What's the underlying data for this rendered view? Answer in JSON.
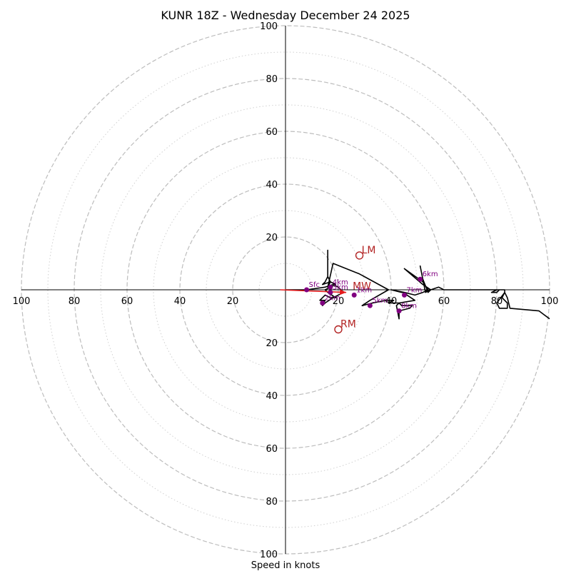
{
  "chart_data": {
    "type": "hodograph",
    "title": "KUNR 18Z - Wednesday December 24 2025",
    "xlabel": "Speed in knots",
    "ring_max": 100,
    "major_rings": [
      20,
      40,
      60,
      80,
      100
    ],
    "minor_rings": [
      10,
      30,
      50,
      70,
      90
    ],
    "ticks": [
      {
        "value": 20,
        "label": "20"
      },
      {
        "value": 40,
        "label": "40"
      },
      {
        "value": 60,
        "label": "60"
      },
      {
        "value": 80,
        "label": "80"
      },
      {
        "value": 100,
        "label": "100"
      }
    ],
    "colors": {
      "trace": "#000000",
      "mean_wind": "#e41a1c",
      "height_markers": "#800080",
      "storm_motion": "#b22222",
      "rings": "#bdbdbd"
    },
    "wind_trace": {
      "name": "wind profile (u, v knots)",
      "points": [
        [
          0,
          0
        ],
        [
          8,
          0
        ],
        [
          15,
          1
        ],
        [
          18,
          2
        ],
        [
          20,
          1
        ],
        [
          22,
          -1
        ],
        [
          18,
          -3
        ],
        [
          15,
          -5
        ],
        [
          14,
          -6
        ],
        [
          15,
          -4
        ],
        [
          13,
          -4
        ],
        [
          15,
          -2
        ],
        [
          17,
          -3
        ],
        [
          19,
          -3
        ],
        [
          16,
          -1
        ],
        [
          15,
          0
        ],
        [
          17,
          1
        ],
        [
          19,
          2
        ],
        [
          17,
          3
        ],
        [
          14,
          2
        ],
        [
          15,
          3
        ],
        [
          16,
          5
        ],
        [
          16,
          15
        ],
        [
          16,
          5
        ],
        [
          17,
          3
        ],
        [
          16,
          1
        ],
        [
          18,
          10
        ],
        [
          28,
          6
        ],
        [
          39,
          0
        ],
        [
          32,
          -4
        ],
        [
          29,
          -6
        ],
        [
          33,
          -5
        ],
        [
          38,
          -4
        ],
        [
          41,
          -4
        ],
        [
          39,
          -5
        ],
        [
          43,
          -5
        ],
        [
          42,
          -6
        ],
        [
          43,
          -11
        ],
        [
          43,
          -8
        ],
        [
          47,
          -7
        ],
        [
          48,
          -6
        ],
        [
          44,
          -6
        ],
        [
          43,
          -5
        ],
        [
          49,
          -4
        ],
        [
          46,
          -2
        ],
        [
          45,
          -1
        ],
        [
          44,
          -1
        ],
        [
          40,
          0
        ],
        [
          45,
          -1
        ],
        [
          49,
          -2
        ],
        [
          52,
          -1
        ],
        [
          54,
          0
        ],
        [
          52,
          3
        ],
        [
          45,
          8
        ],
        [
          52,
          2
        ],
        [
          55,
          0
        ],
        [
          54,
          -1
        ],
        [
          52,
          4
        ],
        [
          51,
          9
        ],
        [
          53,
          -1
        ],
        [
          55,
          0
        ],
        [
          58,
          1
        ],
        [
          60,
          0
        ],
        [
          64,
          0
        ],
        [
          70,
          0
        ],
        [
          74,
          0
        ],
        [
          76,
          0
        ],
        [
          81,
          0
        ],
        [
          80,
          -1
        ],
        [
          79,
          -1
        ],
        [
          78,
          -1
        ],
        [
          80,
          0
        ],
        [
          83,
          0
        ],
        [
          83,
          -1
        ],
        [
          80,
          -5
        ],
        [
          81,
          -7
        ],
        [
          84,
          -7
        ],
        [
          84,
          -5
        ],
        [
          82,
          -3
        ],
        [
          83,
          -1
        ],
        [
          84,
          -3
        ],
        [
          85,
          -7
        ],
        [
          96,
          -8
        ],
        [
          100,
          -11
        ]
      ]
    },
    "height_markers": [
      {
        "label": "Sfc",
        "u": 8,
        "v": 0
      },
      {
        "label": "1km",
        "u": 26,
        "v": -2
      },
      {
        "label": "2km",
        "u": 14,
        "v": -5
      },
      {
        "label": "3km",
        "u": 17,
        "v": -1
      },
      {
        "label": "4km",
        "u": 17,
        "v": 1
      },
      {
        "label": "5km",
        "u": 32,
        "v": -6
      },
      {
        "label": "6km",
        "u": 51,
        "v": 4
      },
      {
        "label": "7km",
        "u": 45,
        "v": -2
      },
      {
        "label": "8km",
        "u": 43,
        "v": -8
      }
    ],
    "mean_wind_vector": {
      "label": "MW",
      "from_u": -2,
      "from_v": 0,
      "to_u": 23,
      "to_v": -1
    },
    "storm_motion": [
      {
        "label": "LM",
        "u": 28,
        "v": 13
      },
      {
        "label": "RM",
        "u": 20,
        "v": -15
      }
    ]
  }
}
